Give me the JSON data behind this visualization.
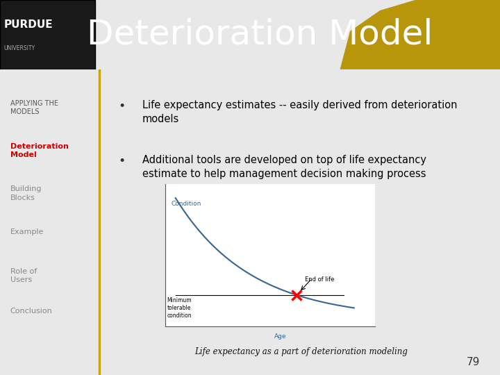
{
  "title": "Deterioration Model",
  "title_color": "#ffffff",
  "title_fontsize": 36,
  "header_bg": "#111111",
  "header_gold_color": "#b8960c",
  "sidebar_border_color": "#c8a415",
  "sidebar_items": [
    {
      "text": "APPLYING THE\nMODELS",
      "color": "#555555",
      "bold": false,
      "fontsize": 7
    },
    {
      "text": "Deterioration\nModel",
      "color": "#cc0000",
      "bold": true,
      "fontsize": 8
    },
    {
      "text": "Building\nBlocks",
      "color": "#888888",
      "bold": false,
      "fontsize": 8
    },
    {
      "text": "Example",
      "color": "#888888",
      "bold": false,
      "fontsize": 8
    },
    {
      "text": "Role of\nUsers",
      "color": "#888888",
      "bold": false,
      "fontsize": 8
    },
    {
      "text": "Conclusion",
      "color": "#888888",
      "bold": false,
      "fontsize": 8
    }
  ],
  "bullet1": "Life expectancy estimates -- easily derived from deterioration\nmodels",
  "bullet2": "Additional tools are developed on top of life expectancy\nestimate to help management decision making process",
  "bullet_color": "#000000",
  "bullet_fontsize": 10.5,
  "chart_caption": "Life expectancy as a part of deterioration modeling",
  "page_number": "79",
  "purdue_name": "PURDUE",
  "purdue_univ": "UNIVERSITY"
}
